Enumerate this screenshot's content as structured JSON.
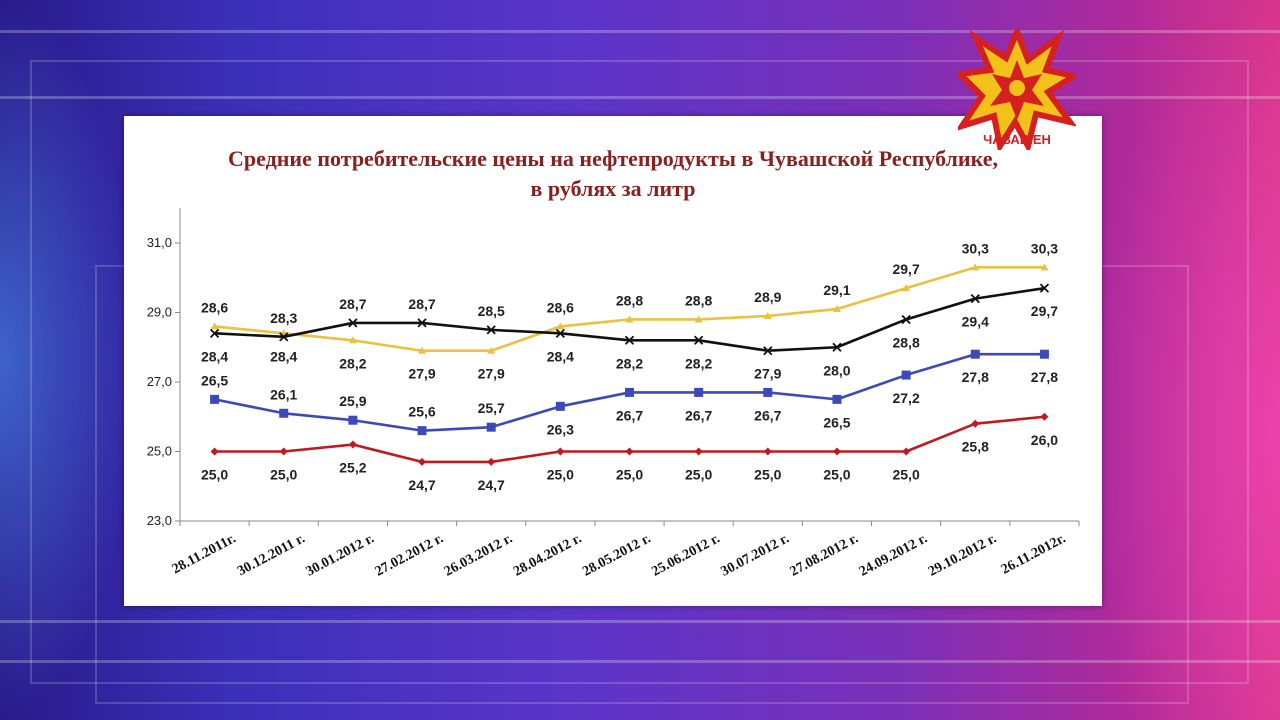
{
  "logo": {
    "text": "ЧАВАШЕН",
    "icon": "star-burst-microphone-logo"
  },
  "colors": {
    "series_colors": [
      "#e8c240",
      "#111111",
      "#3d49b8",
      "#c0191f"
    ]
  },
  "chart_data": {
    "type": "line",
    "title": "Средние потребительские цены на нефтепродукты в Чувашской Республике,",
    "subtitle": "в рублях за литр",
    "xlabel": "",
    "ylabel": "",
    "ylim": [
      23.0,
      31.0
    ],
    "yticks": [
      "23,0",
      "25,0",
      "27,0",
      "29,0",
      "31,0"
    ],
    "grid": false,
    "categories": [
      "28.11.2011г.",
      "30.12.2011 г.",
      "30.01.2012 г.",
      "27.02.2012 г.",
      "26.03.2012 г.",
      "28.04.2012 г.",
      "28.05.2012 г.",
      "25.06.2012 г.",
      "30.07.2012 г.",
      "27.08.2012 г.",
      "24.09.2012 г.",
      "29.10.2012 г.",
      "26.11.2012г."
    ],
    "series": [
      {
        "values": [
          28.6,
          28.4,
          28.2,
          27.9,
          27.9,
          28.6,
          28.8,
          28.8,
          28.9,
          29.1,
          29.7,
          30.3,
          30.3
        ],
        "labels": [
          "28,6",
          "28,4",
          "28,2",
          "27,9",
          "27,9",
          "28,6",
          "28,8",
          "28,8",
          "28,9",
          "29,1",
          "29,7",
          "30,3",
          "30,3"
        ],
        "label_pos": [
          "above",
          "below",
          "below",
          "below",
          "below",
          "above",
          "above",
          "above",
          "above",
          "above",
          "above",
          "above",
          "above"
        ]
      },
      {
        "values": [
          28.4,
          28.3,
          28.7,
          28.7,
          28.5,
          28.4,
          28.2,
          28.2,
          27.9,
          28.0,
          28.8,
          29.4,
          29.7
        ],
        "labels": [
          "28,4",
          "28,3",
          "28,7",
          "28,7",
          "28,5",
          "28,4",
          "28,2",
          "28,2",
          "27,9",
          "28,0",
          "28,8",
          "29,4",
          "29,7"
        ],
        "label_pos": [
          "below",
          "above",
          "above",
          "above",
          "above",
          "below",
          "below",
          "below",
          "below",
          "below",
          "below",
          "below",
          "below"
        ]
      },
      {
        "values": [
          26.5,
          26.1,
          25.9,
          25.6,
          25.7,
          26.3,
          26.7,
          26.7,
          26.7,
          26.5,
          27.2,
          27.8,
          27.8
        ],
        "labels": [
          "26,5",
          "26,1",
          "25,9",
          "25,6",
          "25,7",
          "26,3",
          "26,7",
          "26,7",
          "26,7",
          "26,5",
          "27,2",
          "27,8",
          "27,8"
        ],
        "label_pos": [
          "above",
          "above",
          "above",
          "above",
          "above",
          "below",
          "below",
          "below",
          "below",
          "below",
          "below",
          "below",
          "below"
        ]
      },
      {
        "values": [
          25.0,
          25.0,
          25.2,
          24.7,
          24.7,
          25.0,
          25.0,
          25.0,
          25.0,
          25.0,
          25.0,
          25.8,
          26.0
        ],
        "labels": [
          "25,0",
          "25,0",
          "25,2",
          "24,7",
          "24,7",
          "25,0",
          "25,0",
          "25,0",
          "25,0",
          "25,0",
          "25,0",
          "25,8",
          "26,0"
        ],
        "label_pos": [
          "below",
          "below",
          "below",
          "below",
          "below",
          "below",
          "below",
          "below",
          "below",
          "below",
          "below",
          "below",
          "below"
        ]
      }
    ]
  }
}
